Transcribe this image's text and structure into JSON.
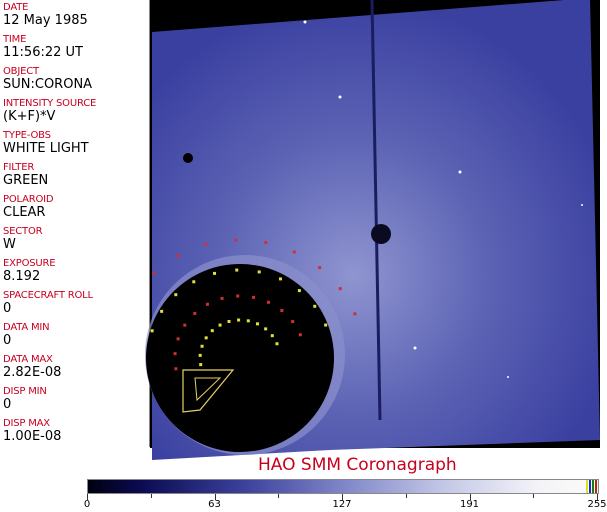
{
  "fields": [
    {
      "label": "DATE",
      "value": "12 May 1985"
    },
    {
      "label": "TIME",
      "value": "11:56:22 UT"
    },
    {
      "label": "OBJECT",
      "value": "SUN:CORONA"
    },
    {
      "label": "INTENSITY SOURCE",
      "value": "(K+F)*V"
    },
    {
      "label": "TYPE-OBS",
      "value": "WHITE LIGHT"
    },
    {
      "label": "FILTER",
      "value": "GREEN"
    },
    {
      "label": "POLAROID",
      "value": "CLEAR"
    },
    {
      "label": "SECTOR",
      "value": "W"
    },
    {
      "label": "EXPOSURE",
      "value": "8.192"
    },
    {
      "label": "SPACECRAFT ROLL",
      "value": "0"
    },
    {
      "label": "DATA MIN",
      "value": "0"
    },
    {
      "label": "DATA MAX",
      "value": "2.82E-08"
    },
    {
      "label": "DISP MIN",
      "value": "0"
    },
    {
      "label": "DISP MAX",
      "value": "1.00E-08"
    }
  ],
  "title": "HAO  SMM Coronagraph",
  "colorbar": {
    "ticks": [
      "0",
      "63",
      "127",
      "191",
      "255"
    ],
    "min": 0,
    "max": 255,
    "colors": {
      "low": "#000010",
      "mid": "#7f86c8",
      "high": "#fafafa"
    }
  }
}
